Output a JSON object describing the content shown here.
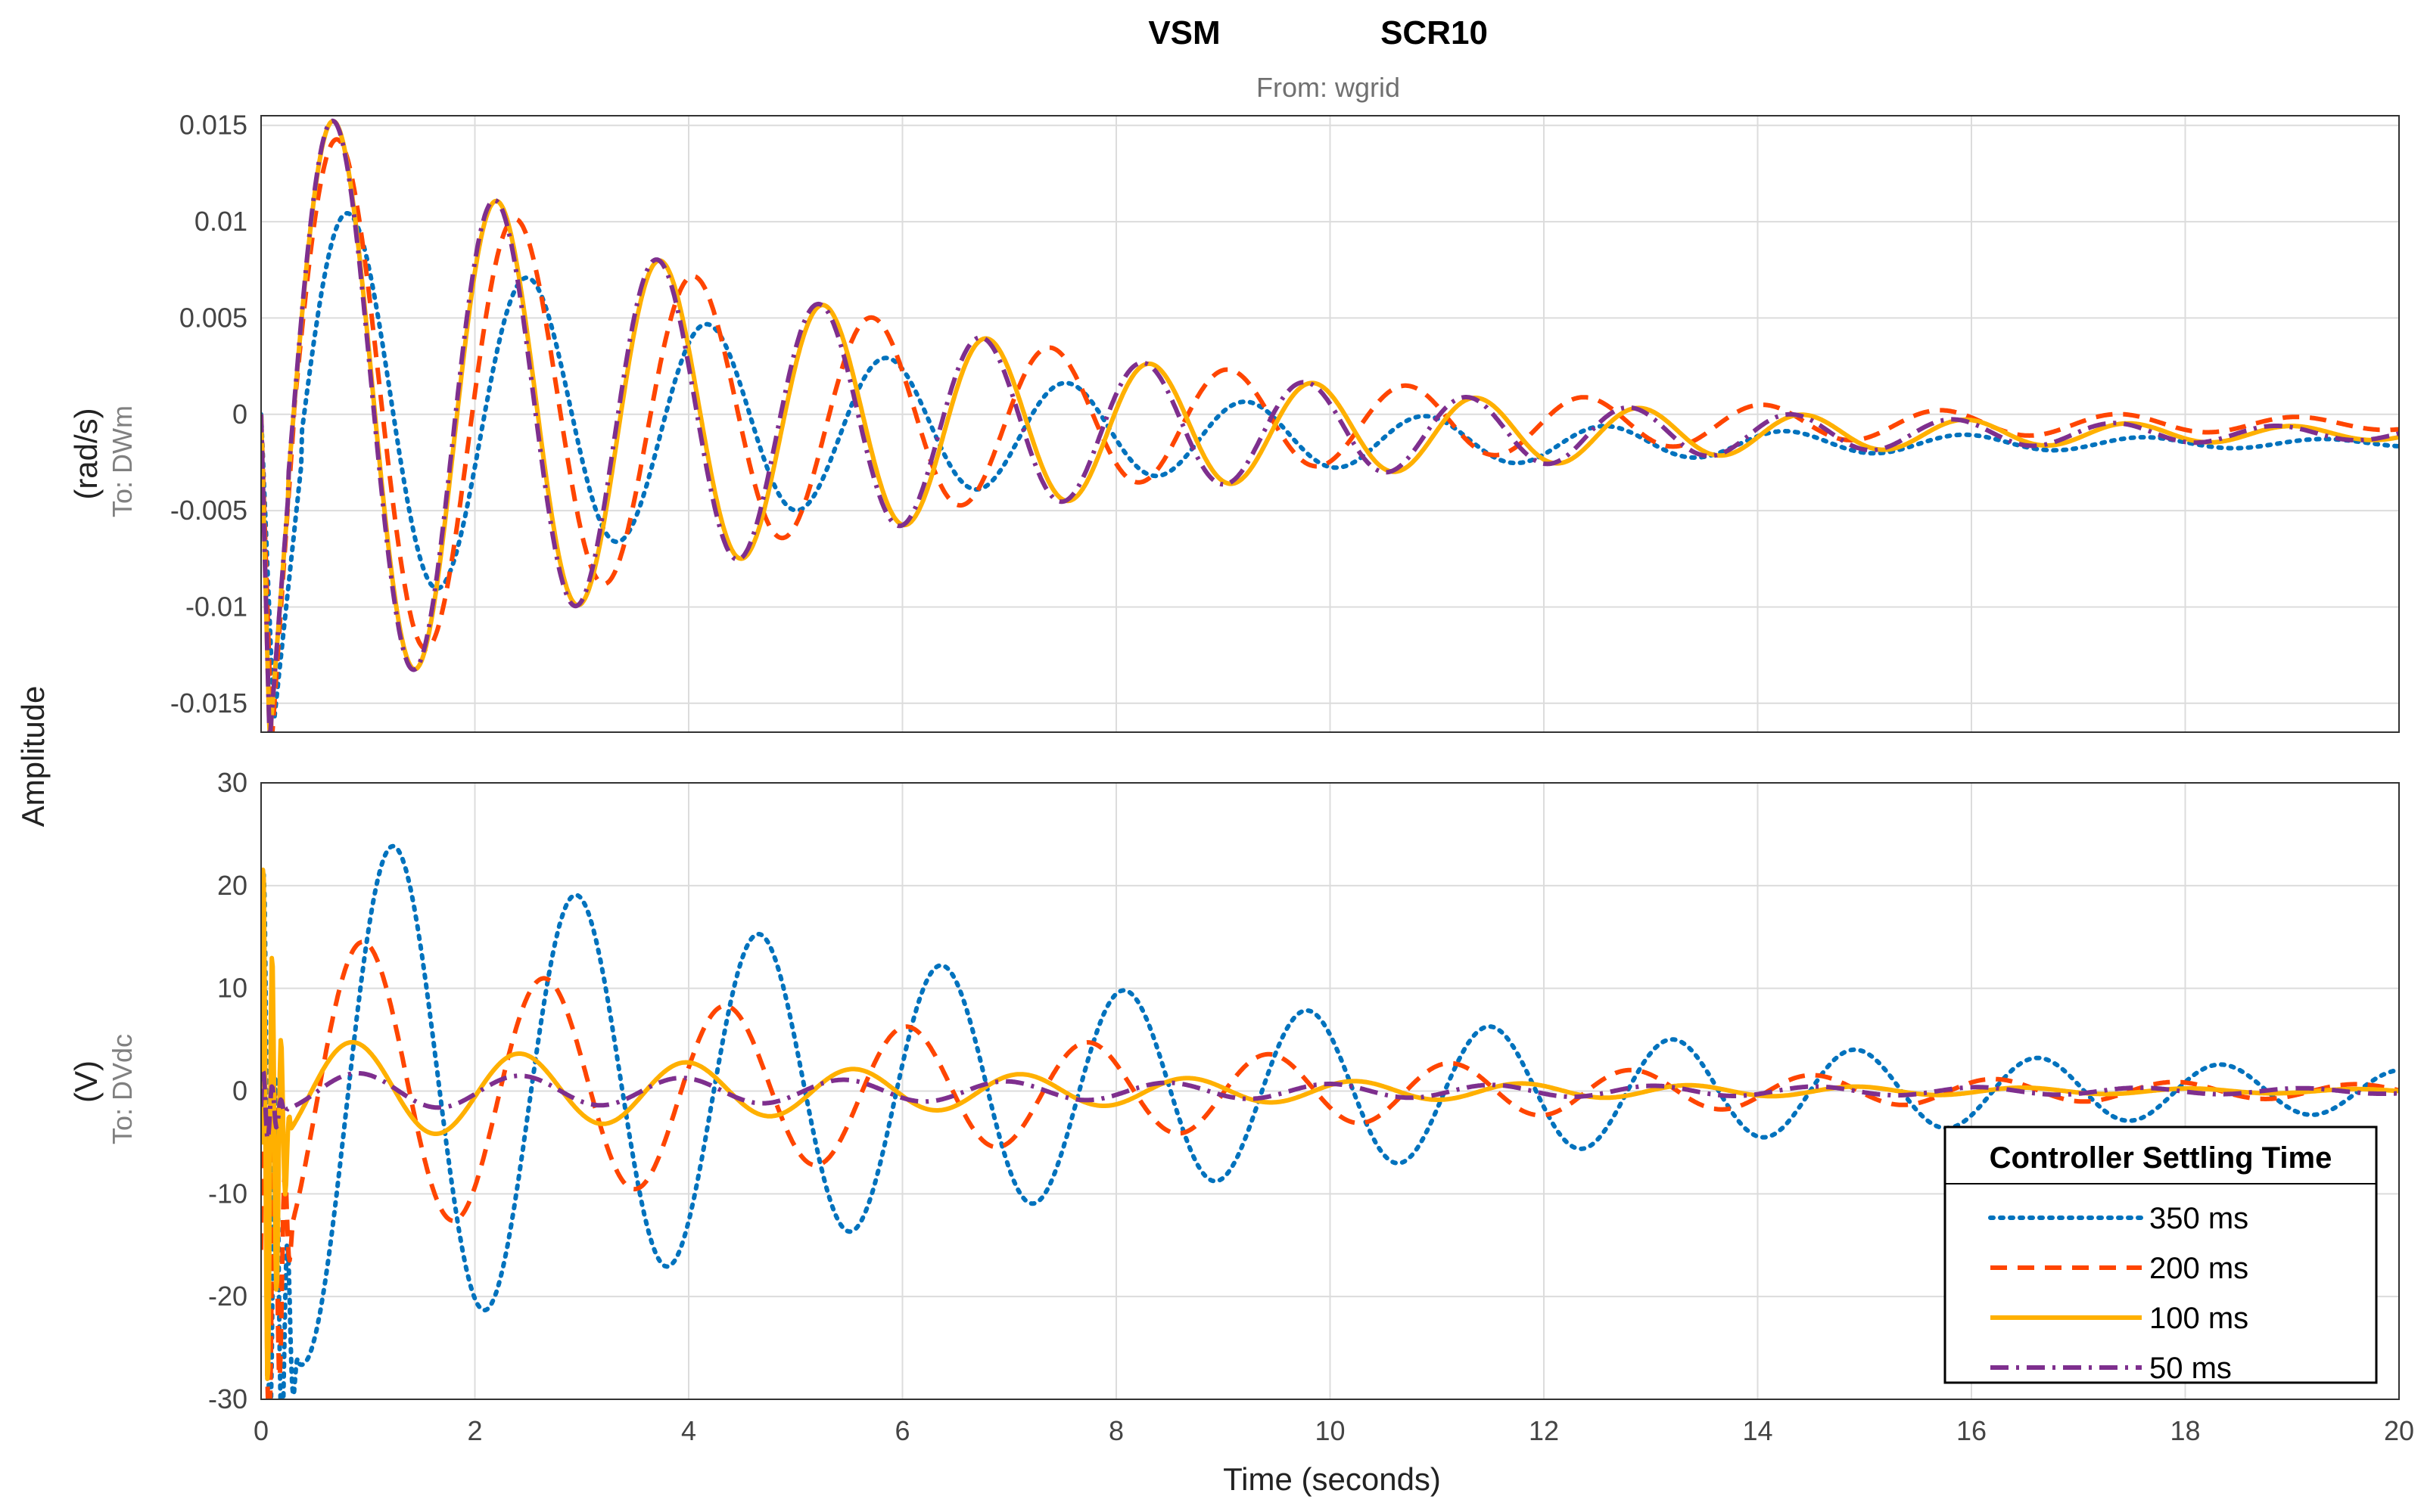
{
  "chart_data": {
    "type": "line",
    "title_left": "VSM",
    "title_right": "SCR10",
    "subtitle": "From: wgrid",
    "common_ylabel": "Amplitude",
    "xlabel": "Time (seconds)",
    "xlim": [
      0,
      20
    ],
    "x_ticks": [
      "0",
      "2",
      "4",
      "6",
      "8",
      "10",
      "12",
      "14",
      "16",
      "18",
      "20"
    ],
    "grid": true,
    "legend": {
      "title": "Controller Settling Time",
      "position": "bottom-right",
      "entries": [
        {
          "label": "350 ms",
          "color": "#0072BD",
          "style": "dotted"
        },
        {
          "label": "200 ms",
          "color": "#FF4500",
          "style": "dashed"
        },
        {
          "label": "100 ms",
          "color": "#FFB000",
          "style": "solid"
        },
        {
          "label": "50 ms",
          "color": "#7E2F8E",
          "style": "dashdot"
        }
      ]
    },
    "panels": [
      {
        "name": "top",
        "unit": "(rad/s)",
        "to_label": "To: DWm",
        "ylim": [
          -0.0165,
          0.0155
        ],
        "y_ticks": [
          -0.015,
          -0.01,
          -0.005,
          0,
          0.005,
          0.01,
          0.015
        ],
        "y_tick_labels": [
          "-0.015",
          "-0.01",
          "-0.005",
          "0",
          "0.005",
          "0.01",
          "0.015"
        ],
        "series": [
          {
            "name": "350 ms",
            "dip": -0.016,
            "dip_t": 0.12,
            "rise": 0.38,
            "amp": 0.0125,
            "freq": 0.595,
            "phase": -1.5,
            "decay": 0.21,
            "offset": -0.0015,
            "t_offset": 0
          },
          {
            "name": "200 ms",
            "dip": -0.017,
            "dip_t": 0.1,
            "rise": 0.3,
            "amp": 0.0165,
            "freq": 0.6,
            "phase": -1.15,
            "decay": 0.2,
            "offset": -0.0005,
            "t_offset": 0
          },
          {
            "name": "100 ms",
            "dip": -0.017,
            "dip_t": 0.08,
            "rise": 0.25,
            "amp": 0.0175,
            "freq": 0.655,
            "phase": -1.25,
            "decay": 0.2,
            "offset": -0.001,
            "t_offset": 0
          },
          {
            "name": "50 ms",
            "dip": -0.017,
            "dip_t": 0.08,
            "rise": 0.25,
            "amp": 0.0175,
            "freq": 0.66,
            "phase": -1.25,
            "decay": 0.2,
            "offset": -0.001,
            "t_offset": 0
          }
        ]
      },
      {
        "name": "bottom",
        "unit": "(V)",
        "to_label": "To: DVdc",
        "ylim": [
          -30,
          30
        ],
        "y_ticks": [
          -30,
          -20,
          -10,
          0,
          10,
          20,
          30
        ],
        "y_tick_labels": [
          "-30",
          "-20",
          "-10",
          "0",
          "10",
          "20",
          "30"
        ],
        "series": [
          {
            "name": "350 ms",
            "amp": 28,
            "freq": 0.585,
            "phase": -3.0,
            "decay": 0.13,
            "spike": 30,
            "spike_freq": 9,
            "spike_end": 0.35,
            "offset": 0
          },
          {
            "name": "200 ms",
            "amp": 17,
            "freq": 0.59,
            "phase": -2.0,
            "decay": 0.165,
            "spike": 28,
            "spike_freq": 10,
            "spike_end": 0.3,
            "offset": 0
          },
          {
            "name": "100 ms",
            "amp": 5.5,
            "freq": 0.64,
            "phase": -1.9,
            "decay": 0.17,
            "spike": 30,
            "spike_freq": 12,
            "spike_end": 0.28,
            "offset": 0
          },
          {
            "name": "50 ms",
            "amp": 1.9,
            "freq": 0.66,
            "phase": -2.2,
            "decay": 0.1,
            "spike": 4,
            "spike_freq": 12,
            "spike_end": 0.25,
            "offset": 0
          }
        ]
      }
    ]
  }
}
